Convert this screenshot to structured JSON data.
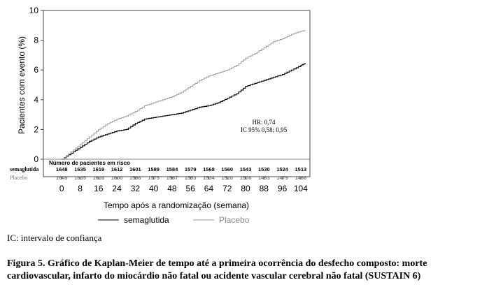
{
  "chart_data": {
    "type": "line",
    "subtype": "kaplan-meier",
    "ylabel": "Pacientes com evento (%)",
    "xlabel": "Tempo após a randomização (semana)",
    "ylim": [
      0,
      10
    ],
    "xlim": [
      -8,
      108
    ],
    "y_ticks": [
      0,
      2,
      4,
      6,
      8,
      10
    ],
    "x_ticks": [
      0,
      8,
      16,
      24,
      32,
      40,
      48,
      56,
      64,
      72,
      80,
      88,
      96,
      104
    ],
    "series": [
      {
        "name": "semaglutida",
        "color": "#000000",
        "x": [
          0,
          4,
          8,
          12,
          16,
          20,
          24,
          28,
          32,
          36,
          40,
          44,
          48,
          52,
          56,
          60,
          64,
          68,
          72,
          76,
          80,
          84,
          88,
          92,
          96,
          100,
          104,
          106
        ],
        "y": [
          0,
          0.4,
          0.8,
          1.2,
          1.5,
          1.7,
          1.9,
          2.0,
          2.4,
          2.7,
          2.8,
          2.9,
          3.0,
          3.1,
          3.3,
          3.5,
          3.6,
          3.8,
          4.1,
          4.4,
          4.9,
          5.1,
          5.3,
          5.5,
          5.7,
          6.0,
          6.3,
          6.45
        ]
      },
      {
        "name": "Placebo",
        "color": "#999999",
        "x": [
          0,
          4,
          8,
          12,
          16,
          20,
          24,
          28,
          32,
          36,
          40,
          44,
          48,
          52,
          56,
          60,
          64,
          68,
          72,
          76,
          80,
          84,
          88,
          92,
          96,
          100,
          104,
          106
        ],
        "y": [
          0,
          0.5,
          1.0,
          1.5,
          2.0,
          2.4,
          2.7,
          2.9,
          3.2,
          3.6,
          3.8,
          4.0,
          4.2,
          4.5,
          4.9,
          5.3,
          5.6,
          5.8,
          6.0,
          6.3,
          6.8,
          7.1,
          7.5,
          7.9,
          8.1,
          8.4,
          8.6,
          8.65
        ]
      }
    ],
    "annotations": [
      "HR: 0,74",
      "IC 95% 0,58; 0,95"
    ],
    "legend_position": "bottom"
  },
  "risk_table": {
    "title": "Número de pacientes em risco",
    "rows": [
      {
        "label": "semaglutida",
        "values": [
          "1648",
          "1635",
          "1619",
          "1612",
          "1601",
          "1589",
          "1584",
          "1579",
          "1568",
          "1560",
          "1543",
          "1530",
          "1524",
          "1513"
        ]
      },
      {
        "label": "Placebo",
        "values": [
          "1649",
          "1635",
          "1616",
          "1600",
          "1586",
          "1575",
          "1567",
          "1553",
          "1534",
          "1520",
          "1508",
          "1493",
          "1479",
          "1466"
        ]
      }
    ]
  },
  "legend": [
    "semaglutida",
    "Placebo"
  ],
  "footnote": "IC: intervalo de confiança",
  "caption": "Figura 5. Gráfico de Kaplan-Meier de tempo até a primeira ocorrência do desfecho composto: morte cardiovascular, infarto do miocárdio não fatal ou acidente vascular cerebral não fatal (SUSTAIN 6)"
}
